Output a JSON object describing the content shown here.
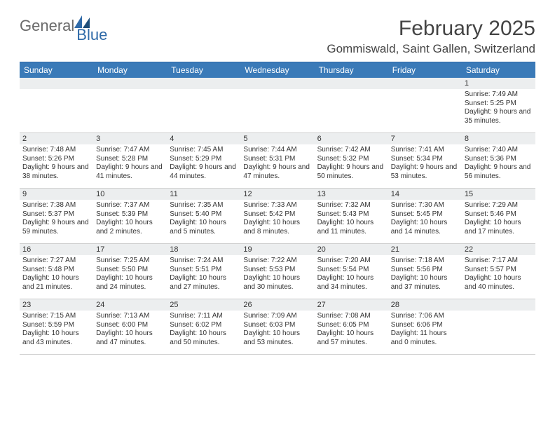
{
  "logo": {
    "text1": "General",
    "text2": "Blue"
  },
  "title": "February 2025",
  "location": "Gommiswald, Saint Gallen, Switzerland",
  "weekdays": [
    "Sunday",
    "Monday",
    "Tuesday",
    "Wednesday",
    "Thursday",
    "Friday",
    "Saturday"
  ],
  "colors": {
    "header_bar": "#3a7ab8",
    "band": "#eceeef",
    "rule": "#2f6aa8",
    "text": "#333333"
  },
  "weeks": [
    [
      null,
      null,
      null,
      null,
      null,
      null,
      {
        "n": "1",
        "sr": "Sunrise: 7:49 AM",
        "ss": "Sunset: 5:25 PM",
        "dl": "Daylight: 9 hours and 35 minutes."
      }
    ],
    [
      {
        "n": "2",
        "sr": "Sunrise: 7:48 AM",
        "ss": "Sunset: 5:26 PM",
        "dl": "Daylight: 9 hours and 38 minutes."
      },
      {
        "n": "3",
        "sr": "Sunrise: 7:47 AM",
        "ss": "Sunset: 5:28 PM",
        "dl": "Daylight: 9 hours and 41 minutes."
      },
      {
        "n": "4",
        "sr": "Sunrise: 7:45 AM",
        "ss": "Sunset: 5:29 PM",
        "dl": "Daylight: 9 hours and 44 minutes."
      },
      {
        "n": "5",
        "sr": "Sunrise: 7:44 AM",
        "ss": "Sunset: 5:31 PM",
        "dl": "Daylight: 9 hours and 47 minutes."
      },
      {
        "n": "6",
        "sr": "Sunrise: 7:42 AM",
        "ss": "Sunset: 5:32 PM",
        "dl": "Daylight: 9 hours and 50 minutes."
      },
      {
        "n": "7",
        "sr": "Sunrise: 7:41 AM",
        "ss": "Sunset: 5:34 PM",
        "dl": "Daylight: 9 hours and 53 minutes."
      },
      {
        "n": "8",
        "sr": "Sunrise: 7:40 AM",
        "ss": "Sunset: 5:36 PM",
        "dl": "Daylight: 9 hours and 56 minutes."
      }
    ],
    [
      {
        "n": "9",
        "sr": "Sunrise: 7:38 AM",
        "ss": "Sunset: 5:37 PM",
        "dl": "Daylight: 9 hours and 59 minutes."
      },
      {
        "n": "10",
        "sr": "Sunrise: 7:37 AM",
        "ss": "Sunset: 5:39 PM",
        "dl": "Daylight: 10 hours and 2 minutes."
      },
      {
        "n": "11",
        "sr": "Sunrise: 7:35 AM",
        "ss": "Sunset: 5:40 PM",
        "dl": "Daylight: 10 hours and 5 minutes."
      },
      {
        "n": "12",
        "sr": "Sunrise: 7:33 AM",
        "ss": "Sunset: 5:42 PM",
        "dl": "Daylight: 10 hours and 8 minutes."
      },
      {
        "n": "13",
        "sr": "Sunrise: 7:32 AM",
        "ss": "Sunset: 5:43 PM",
        "dl": "Daylight: 10 hours and 11 minutes."
      },
      {
        "n": "14",
        "sr": "Sunrise: 7:30 AM",
        "ss": "Sunset: 5:45 PM",
        "dl": "Daylight: 10 hours and 14 minutes."
      },
      {
        "n": "15",
        "sr": "Sunrise: 7:29 AM",
        "ss": "Sunset: 5:46 PM",
        "dl": "Daylight: 10 hours and 17 minutes."
      }
    ],
    [
      {
        "n": "16",
        "sr": "Sunrise: 7:27 AM",
        "ss": "Sunset: 5:48 PM",
        "dl": "Daylight: 10 hours and 21 minutes."
      },
      {
        "n": "17",
        "sr": "Sunrise: 7:25 AM",
        "ss": "Sunset: 5:50 PM",
        "dl": "Daylight: 10 hours and 24 minutes."
      },
      {
        "n": "18",
        "sr": "Sunrise: 7:24 AM",
        "ss": "Sunset: 5:51 PM",
        "dl": "Daylight: 10 hours and 27 minutes."
      },
      {
        "n": "19",
        "sr": "Sunrise: 7:22 AM",
        "ss": "Sunset: 5:53 PM",
        "dl": "Daylight: 10 hours and 30 minutes."
      },
      {
        "n": "20",
        "sr": "Sunrise: 7:20 AM",
        "ss": "Sunset: 5:54 PM",
        "dl": "Daylight: 10 hours and 34 minutes."
      },
      {
        "n": "21",
        "sr": "Sunrise: 7:18 AM",
        "ss": "Sunset: 5:56 PM",
        "dl": "Daylight: 10 hours and 37 minutes."
      },
      {
        "n": "22",
        "sr": "Sunrise: 7:17 AM",
        "ss": "Sunset: 5:57 PM",
        "dl": "Daylight: 10 hours and 40 minutes."
      }
    ],
    [
      {
        "n": "23",
        "sr": "Sunrise: 7:15 AM",
        "ss": "Sunset: 5:59 PM",
        "dl": "Daylight: 10 hours and 43 minutes."
      },
      {
        "n": "24",
        "sr": "Sunrise: 7:13 AM",
        "ss": "Sunset: 6:00 PM",
        "dl": "Daylight: 10 hours and 47 minutes."
      },
      {
        "n": "25",
        "sr": "Sunrise: 7:11 AM",
        "ss": "Sunset: 6:02 PM",
        "dl": "Daylight: 10 hours and 50 minutes."
      },
      {
        "n": "26",
        "sr": "Sunrise: 7:09 AM",
        "ss": "Sunset: 6:03 PM",
        "dl": "Daylight: 10 hours and 53 minutes."
      },
      {
        "n": "27",
        "sr": "Sunrise: 7:08 AM",
        "ss": "Sunset: 6:05 PM",
        "dl": "Daylight: 10 hours and 57 minutes."
      },
      {
        "n": "28",
        "sr": "Sunrise: 7:06 AM",
        "ss": "Sunset: 6:06 PM",
        "dl": "Daylight: 11 hours and 0 minutes."
      },
      null
    ]
  ]
}
